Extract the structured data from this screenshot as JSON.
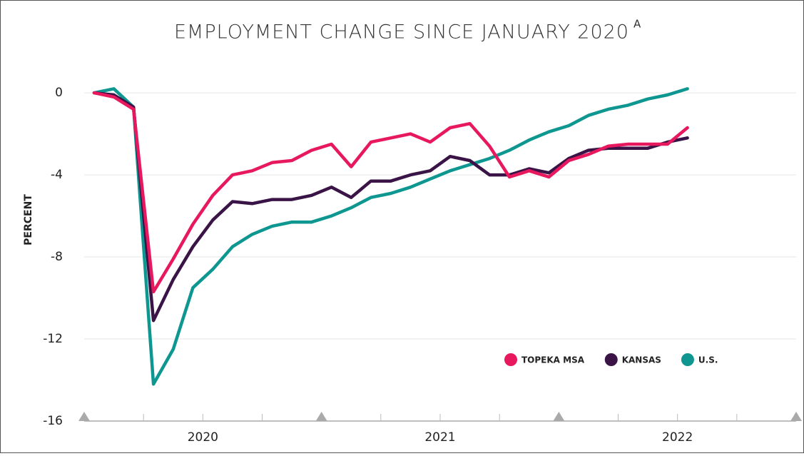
{
  "chart_data": {
    "type": "line",
    "title": "EMPLOYMENT CHANGE SINCE JANUARY 2020",
    "title_note": "A",
    "ylabel": "PERCENT",
    "x": [
      2020.042,
      2020.125,
      2020.208,
      2020.292,
      2020.375,
      2020.458,
      2020.542,
      2020.625,
      2020.708,
      2020.792,
      2020.875,
      2020.958,
      2021.042,
      2021.125,
      2021.208,
      2021.292,
      2021.375,
      2021.458,
      2021.542,
      2021.625,
      2021.708,
      2021.792,
      2021.875,
      2021.958,
      2022.042,
      2022.125,
      2022.208,
      2022.292,
      2022.375,
      2022.458,
      2022.542
    ],
    "series": [
      {
        "name": "U.S.",
        "color": "#0e9690",
        "values": [
          0,
          0.2,
          -0.7,
          -14.2,
          -12.5,
          -9.5,
          -8.6,
          -7.5,
          -6.9,
          -6.5,
          -6.3,
          -6.3,
          -6.0,
          -5.6,
          -5.1,
          -4.9,
          -4.6,
          -4.2,
          -3.8,
          -3.5,
          -3.2,
          -2.8,
          -2.3,
          -1.9,
          -1.6,
          -1.1,
          -0.8,
          -0.6,
          -0.3,
          -0.1,
          0.2
        ]
      },
      {
        "name": "KANSAS",
        "color": "#3a1446",
        "values": [
          0,
          -0.1,
          -0.7,
          -11.1,
          -9.1,
          -7.5,
          -6.2,
          -5.3,
          -5.4,
          -5.2,
          -5.2,
          -5.0,
          -4.6,
          -5.1,
          -4.3,
          -4.3,
          -4.0,
          -3.8,
          -3.1,
          -3.3,
          -4.0,
          -4.0,
          -3.7,
          -3.9,
          -3.2,
          -2.8,
          -2.7,
          -2.7,
          -2.7,
          -2.4,
          -2.2
        ]
      },
      {
        "name": "TOPEKA MSA",
        "color": "#e8185e",
        "values": [
          0,
          -0.2,
          -0.8,
          -9.7,
          -8.1,
          -6.4,
          -5.0,
          -4.0,
          -3.8,
          -3.4,
          -3.3,
          -2.8,
          -2.5,
          -3.6,
          -2.4,
          -2.2,
          -2.0,
          -2.4,
          -1.7,
          -1.5,
          -2.6,
          -4.1,
          -3.8,
          -4.1,
          -3.3,
          -3.0,
          -2.6,
          -2.5,
          -2.5,
          -2.5,
          -1.7
        ]
      }
    ],
    "legend_order": [
      "TOPEKA MSA",
      "KANSAS",
      "U.S."
    ],
    "xlim": [
      2020,
      2023
    ],
    "xticks": [
      {
        "value": 2020.5,
        "label": "2020"
      },
      {
        "value": 2021.5,
        "label": "2021"
      },
      {
        "value": 2022.5,
        "label": "2022"
      }
    ],
    "ylim": [
      -16,
      1.5
    ],
    "yticks": [
      0,
      -4,
      -8,
      -12,
      -16
    ],
    "grid": true
  }
}
